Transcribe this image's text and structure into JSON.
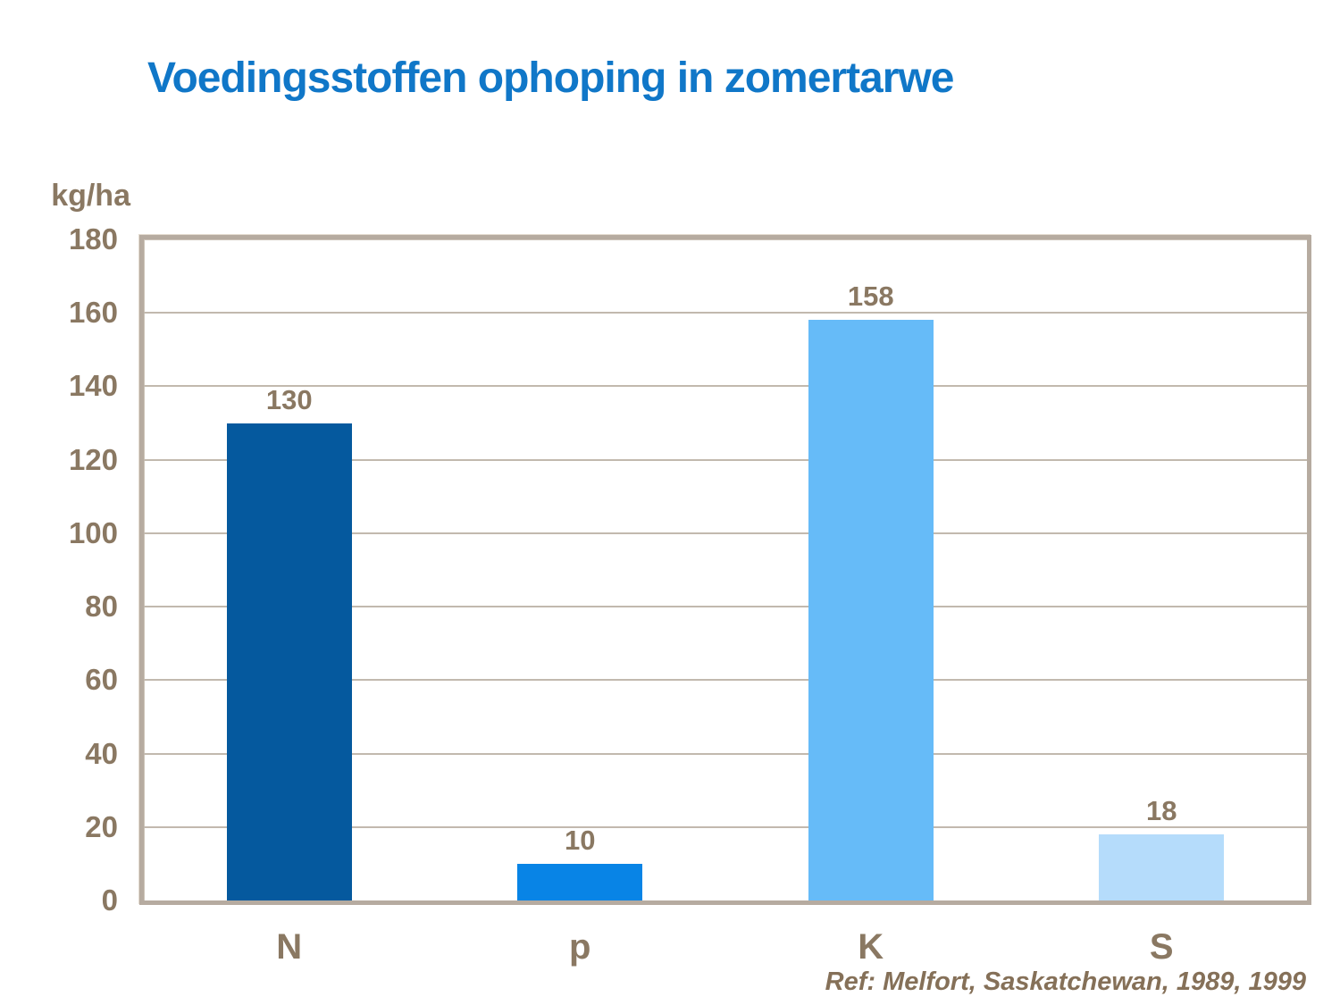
{
  "title": "Voedingsstoffen ophoping in zomertarwe",
  "y_axis_unit": "kg/ha",
  "reference": "Ref: Melfort, Saskatchewan, 1989, 1999",
  "colors": {
    "title": "#1077C8",
    "axis_text": "#8A7862",
    "reference_text": "#857058",
    "plot_border": "#B6ABA0",
    "gridline": "#C2B9AE",
    "bar_colors": [
      "#05599E",
      "#0884E6",
      "#66BBF8",
      "#B5DCFB"
    ]
  },
  "chart_data": {
    "type": "bar",
    "categories": [
      "N",
      "p",
      "K",
      "S"
    ],
    "values": [
      130,
      10,
      158,
      18
    ],
    "data_labels": [
      "130",
      "10",
      "158",
      "18"
    ],
    "title": "Voedingsstoffen ophoping in zomertarwe",
    "xlabel": "",
    "ylabel": "kg/ha",
    "ylim": [
      0,
      180
    ],
    "ytick_interval": 20,
    "yticks": [
      0,
      20,
      40,
      60,
      80,
      100,
      120,
      140,
      160,
      180
    ],
    "grid": true,
    "legend": false,
    "annotation": "Ref: Melfort, Saskatchewan, 1989, 1999"
  }
}
